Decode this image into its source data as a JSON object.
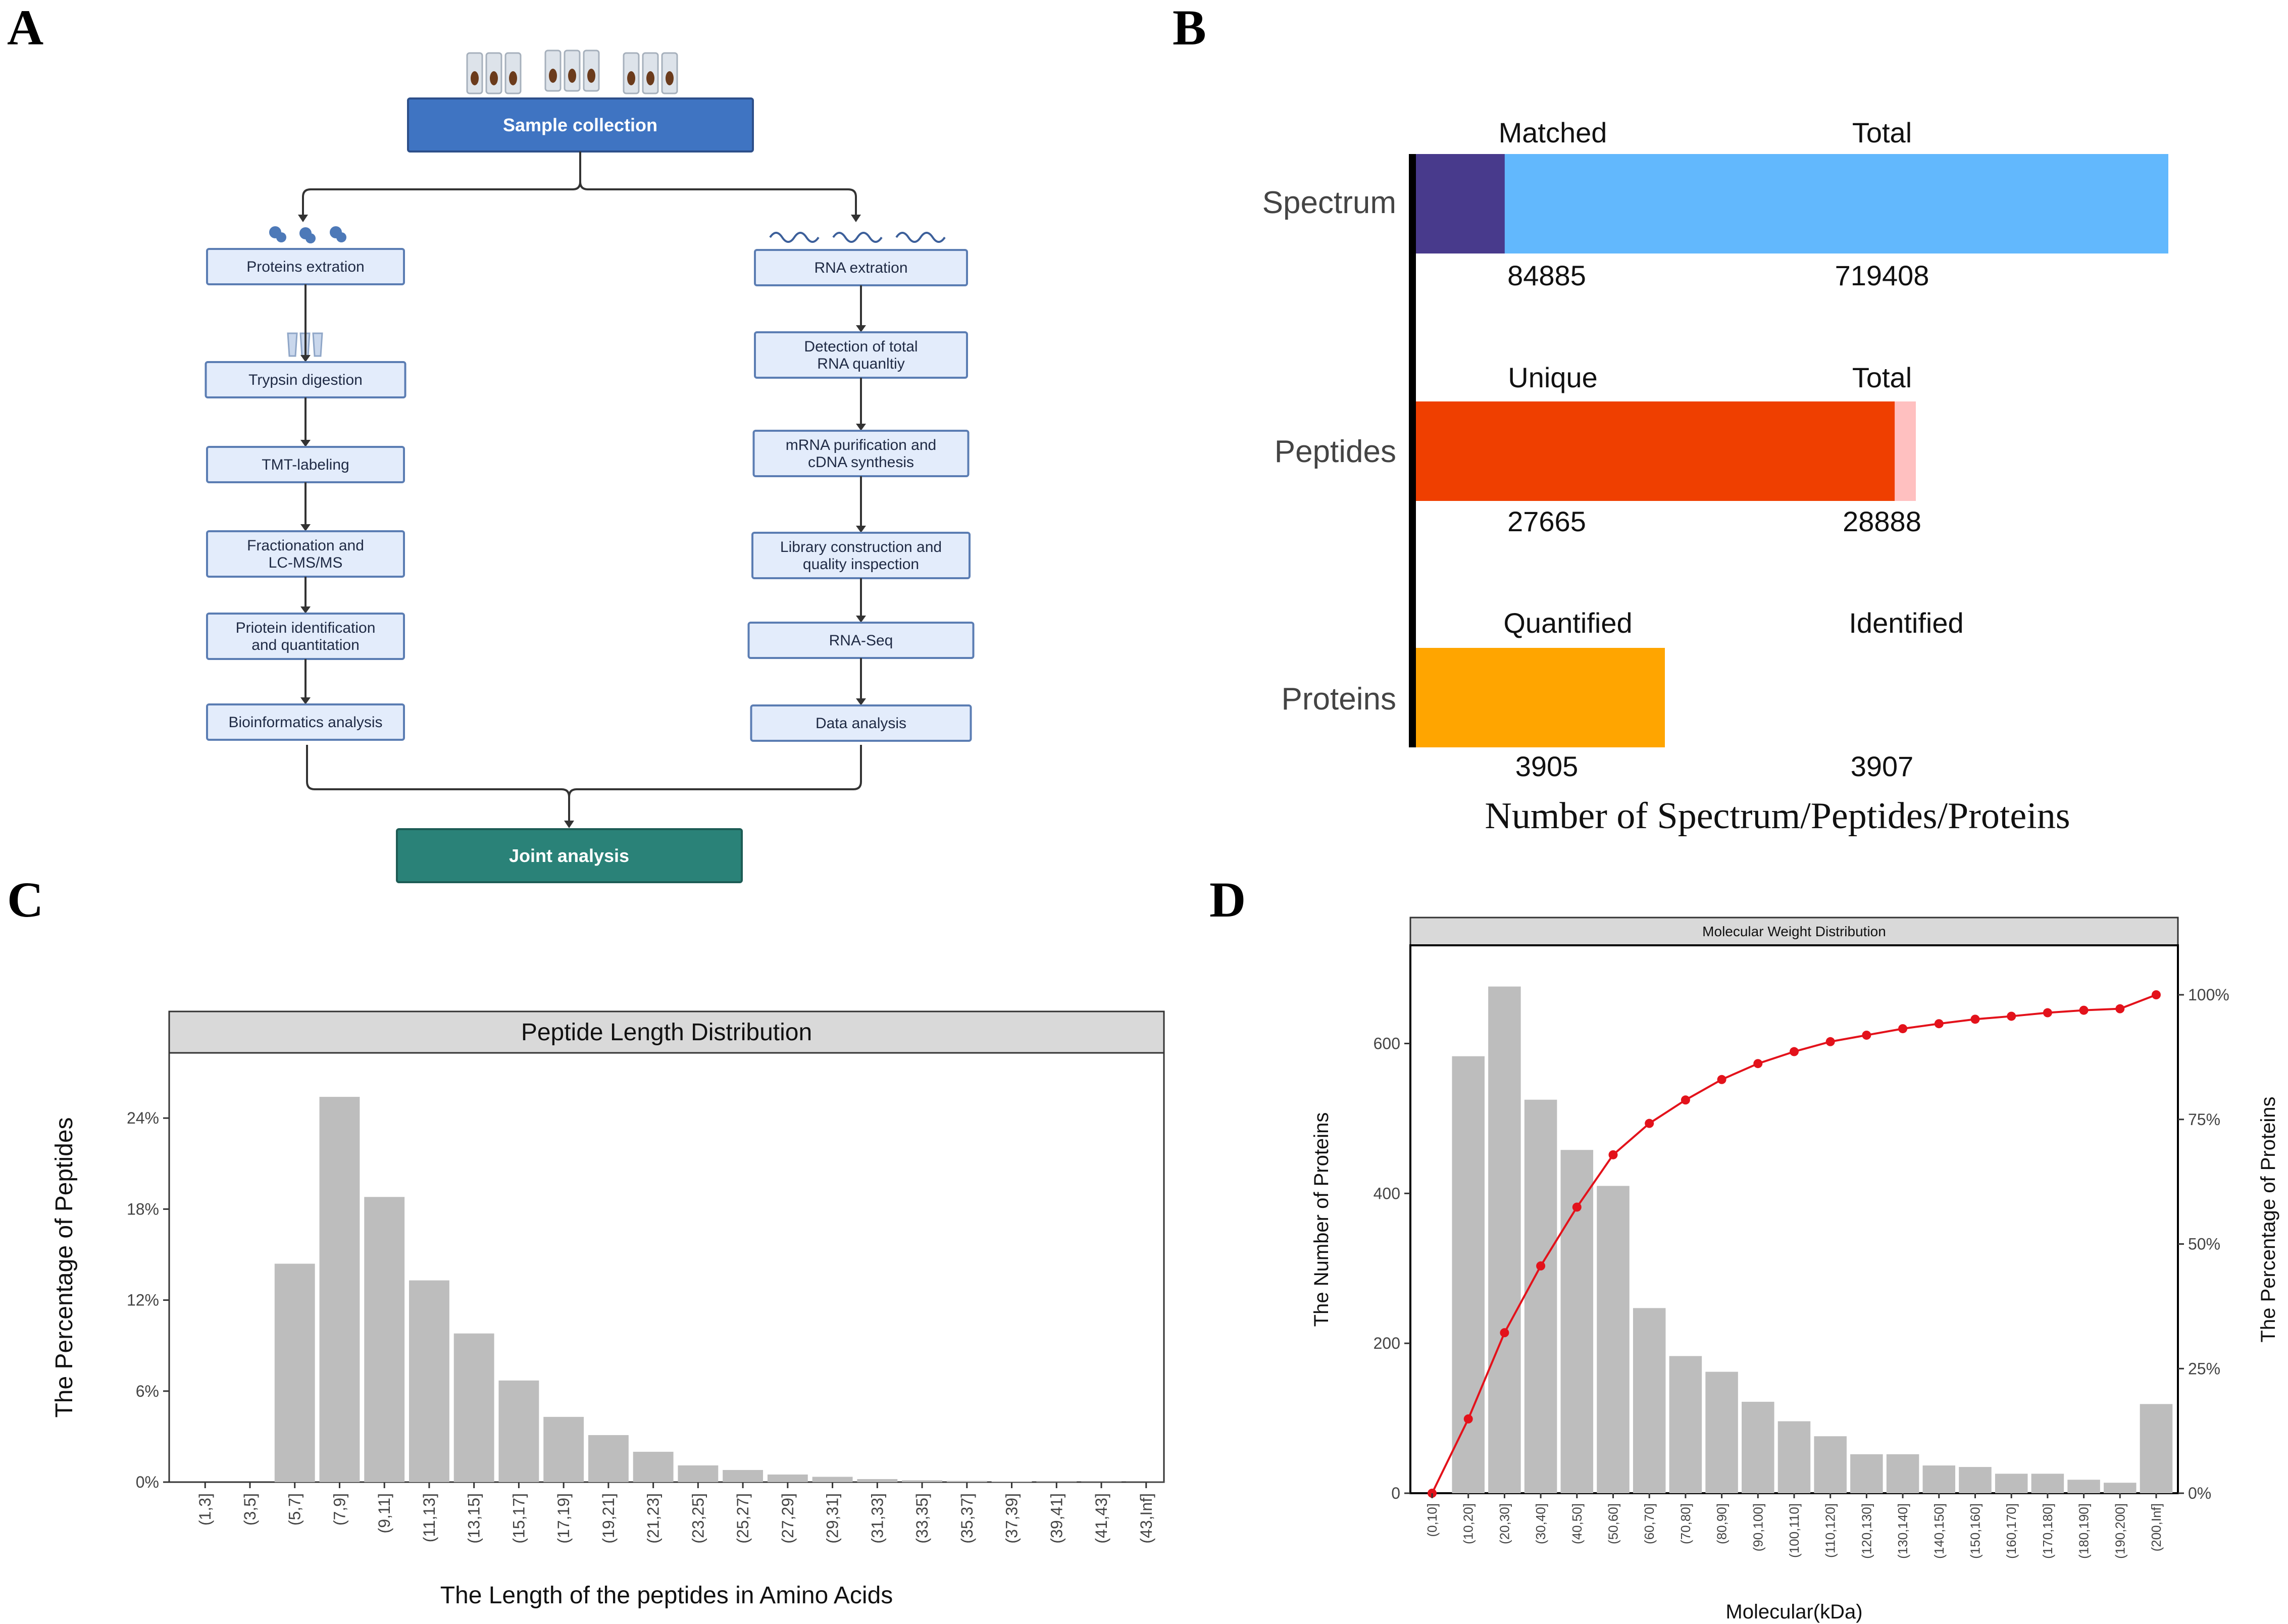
{
  "panels": {
    "a": "A",
    "b": "B",
    "c": "C",
    "d": "D"
  },
  "workflow": {
    "top": "Sample collection",
    "left_steps": [
      "Proteins extration",
      "Trypsin digestion",
      "TMT-labeling",
      "Fractionation and\nLC-MS/MS",
      "Priotein identification\nand quantitation",
      "Bioinformatics analysis"
    ],
    "right_steps": [
      "RNA extration",
      "Detection of total\nRNA quanltiy",
      "mRNA purification and\ncDNA synthesis",
      "Library construction and\nquality inspection",
      "RNA-Seq",
      "Data analysis"
    ],
    "bottom": "Joint analysis",
    "colors": {
      "top": "#3f74c2",
      "bottom": "#2a8278",
      "box_fill": "#e3ecfb",
      "box_stroke": "#5b7db3"
    }
  },
  "chart_data": [
    {
      "type": "bar",
      "panel": "B",
      "orientation": "horizontal",
      "xlabel": "Number of Spectrum/Peptides/Proteins",
      "groups": [
        {
          "category": "Spectrum",
          "label_a": "Matched",
          "value_a": 84885,
          "value_a_text": "84885",
          "label_b": "Total",
          "value_b": 719408,
          "value_b_text": "719408",
          "color_a": "#483a8c",
          "color_b": "#62b8fd"
        },
        {
          "category": "Peptides",
          "label_a": "Unique",
          "value_a": 27665,
          "value_a_text": "27665",
          "label_b": "Total",
          "value_b": 28888,
          "value_b_text": "28888",
          "color_a": "#ef3f00",
          "color_b": "#ffc0c0"
        },
        {
          "category": "Proteins",
          "label_a": "Quantified",
          "value_a": 3905,
          "value_a_text": "3905",
          "label_b": "Identified",
          "value_b": 3907,
          "value_b_text": "3907",
          "color_a": "#ffa500",
          "color_b": "#ffa500"
        }
      ]
    },
    {
      "type": "bar",
      "panel": "C",
      "title": "Peptide Length Distribution",
      "xlabel": "The Length of the peptides in Amino Acids",
      "ylabel": "The Percentage of Peptides",
      "categories": [
        "(1,3]",
        "(3,5]",
        "(5,7]",
        "(7,9]",
        "(9,11]",
        "(11,13]",
        "(13,15]",
        "(15,17]",
        "(17,19]",
        "(19,21]",
        "(21,23]",
        "(23,25]",
        "(25,27]",
        "(27,29]",
        "(29,31]",
        "(31,33]",
        "(33,35]",
        "(35,37]",
        "(37,39]",
        "(39,41]",
        "(41,43]",
        "(43,Inf]"
      ],
      "values": [
        0,
        0,
        14.4,
        25.4,
        18.8,
        13.3,
        9.8,
        6.7,
        4.3,
        3.1,
        2.0,
        1.1,
        0.8,
        0.5,
        0.35,
        0.2,
        0.12,
        0.08,
        0.05,
        0.03,
        0.02,
        0.01
      ],
      "ylim": [
        0,
        28.3
      ],
      "yticks": [
        0,
        6,
        12,
        18,
        24
      ],
      "ytick_labels": [
        "0%",
        "6%",
        "12%",
        "18%",
        "24%"
      ],
      "bar_color": "#bdbdbd"
    },
    {
      "type": "bar",
      "panel": "D",
      "title": "Molecular Weight Distribution",
      "xlabel": "Molecular(kDa)",
      "ylabel": "The Number of Proteins",
      "y2label": "The Percentage of Proteins",
      "categories": [
        "(0,10]",
        "(10,20]",
        "(20,30]",
        "(30,40]",
        "(40,50]",
        "(50,60]",
        "(60,70]",
        "(70,80]",
        "(80,90]",
        "(90,100]",
        "(100,110]",
        "(110,120]",
        "(120,130]",
        "(130,140]",
        "(140,150]",
        "(150,160]",
        "(160,170]",
        "(170,180]",
        "(180,190]",
        "(190,200]",
        "(200,Inf]"
      ],
      "values": [
        0,
        583,
        676,
        525,
        458,
        410,
        247,
        183,
        162,
        122,
        96,
        76,
        52,
        52,
        37,
        35,
        26,
        26,
        18,
        14,
        119
      ],
      "cumulative_percent": [
        0,
        14.9,
        32.2,
        45.6,
        57.4,
        67.9,
        74.2,
        78.9,
        83.0,
        86.2,
        88.6,
        90.6,
        91.9,
        93.2,
        94.2,
        95.1,
        95.7,
        96.4,
        96.9,
        97.2,
        100
      ],
      "ylim": [
        0,
        731
      ],
      "yticks": [
        0,
        200,
        400,
        600
      ],
      "ytick_labels": [
        "0",
        "200",
        "400",
        "600"
      ],
      "y2ticks": [
        0,
        25,
        50,
        75,
        100
      ],
      "y2tick_labels": [
        "0%",
        "25%",
        "50%",
        "75%",
        "100%"
      ],
      "bar_color": "#bdbdbd",
      "line_color": "#e3121b"
    }
  ]
}
